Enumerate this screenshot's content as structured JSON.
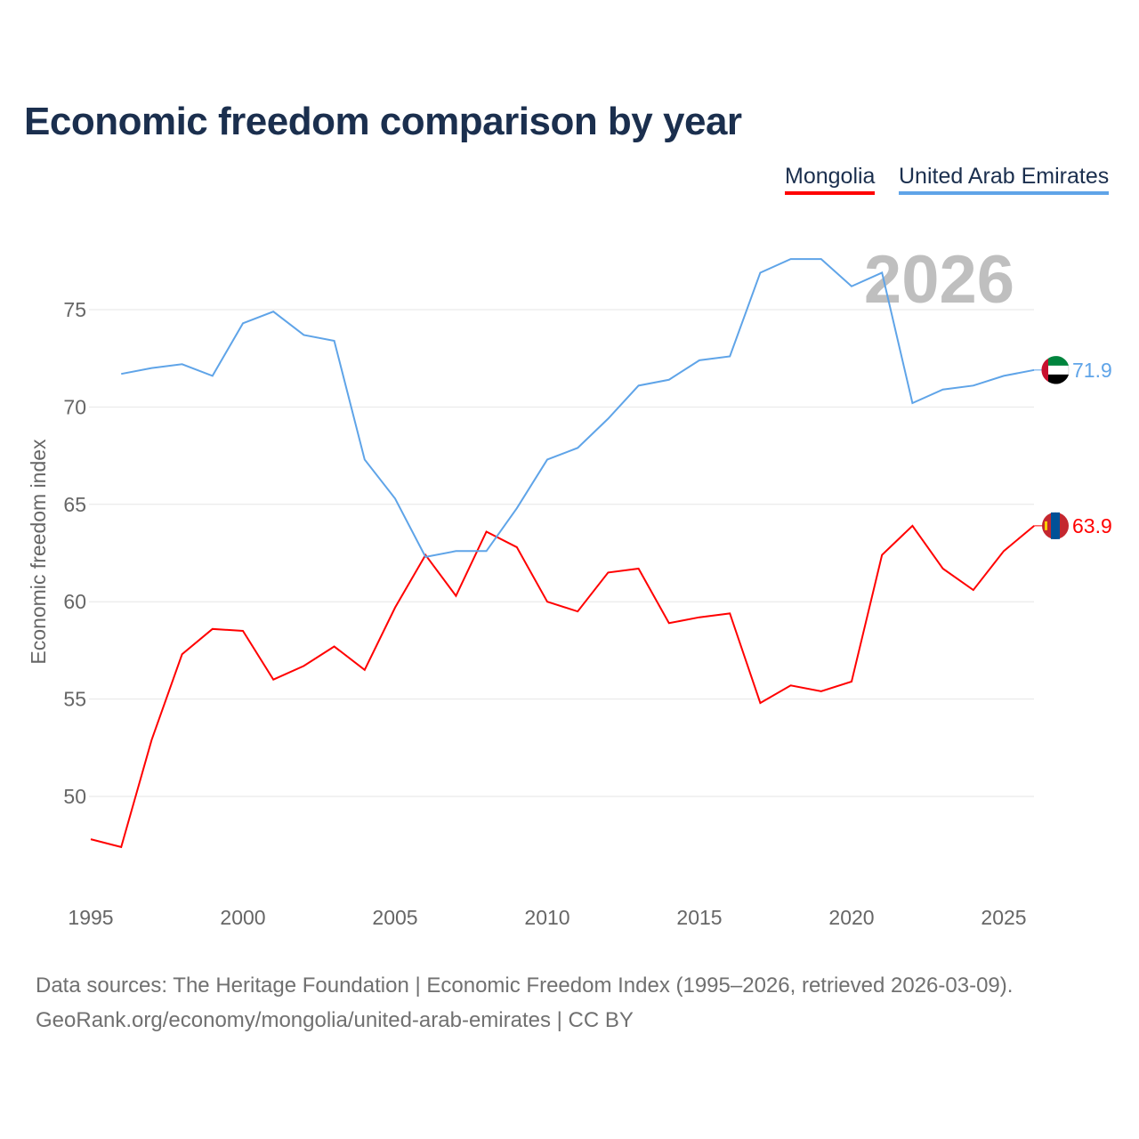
{
  "chart_data": {
    "type": "line",
    "title": "Economic freedom comparison by year",
    "ylabel": "Economic freedom index",
    "xlabel": "",
    "ylim": [
      45.5,
      79
    ],
    "xlim": [
      1995,
      2026
    ],
    "yticks": [
      50,
      55,
      60,
      65,
      70,
      75
    ],
    "xticks": [
      1995,
      2000,
      2005,
      2010,
      2015,
      2020,
      2025
    ],
    "grid": true,
    "year_label": "2026",
    "legend_position": "top-right",
    "series": [
      {
        "name": "Mongolia",
        "color": "#ff0000",
        "end_label": "63.9",
        "x": [
          1995,
          1996,
          1997,
          1998,
          1999,
          2000,
          2001,
          2002,
          2003,
          2004,
          2005,
          2006,
          2007,
          2008,
          2009,
          2010,
          2011,
          2012,
          2013,
          2014,
          2015,
          2016,
          2017,
          2018,
          2019,
          2020,
          2021,
          2022,
          2023,
          2024,
          2025,
          2026
        ],
        "values": [
          47.8,
          47.4,
          52.9,
          57.3,
          58.6,
          58.5,
          56.0,
          56.7,
          57.7,
          56.5,
          59.7,
          62.4,
          60.3,
          63.6,
          62.8,
          60.0,
          59.5,
          61.5,
          61.7,
          58.9,
          59.2,
          59.4,
          54.8,
          55.7,
          55.4,
          55.9,
          62.4,
          63.9,
          61.7,
          60.6,
          62.6,
          63.9
        ]
      },
      {
        "name": "United Arab Emirates",
        "color": "#5fa4e8",
        "end_label": "71.9",
        "x": [
          1996,
          1997,
          1998,
          1999,
          2000,
          2001,
          2002,
          2003,
          2004,
          2005,
          2006,
          2007,
          2008,
          2009,
          2010,
          2011,
          2012,
          2013,
          2014,
          2015,
          2016,
          2017,
          2018,
          2019,
          2020,
          2021,
          2022,
          2023,
          2024,
          2025,
          2026
        ],
        "values": [
          71.7,
          72.0,
          72.2,
          71.6,
          74.3,
          74.9,
          73.7,
          73.4,
          67.3,
          65.3,
          62.3,
          62.6,
          62.6,
          64.8,
          67.3,
          67.9,
          69.4,
          71.1,
          71.4,
          72.4,
          72.6,
          76.9,
          77.6,
          77.6,
          76.2,
          76.9,
          70.2,
          70.9,
          71.1,
          71.6,
          71.9
        ]
      }
    ]
  },
  "footer": {
    "line1": "Data sources: The Heritage Foundation | Economic Freedom Index (1995–2026, retrieved 2026-03-09).",
    "line2": "GeoRank.org/economy/mongolia/united-arab-emirates | CC BY"
  }
}
